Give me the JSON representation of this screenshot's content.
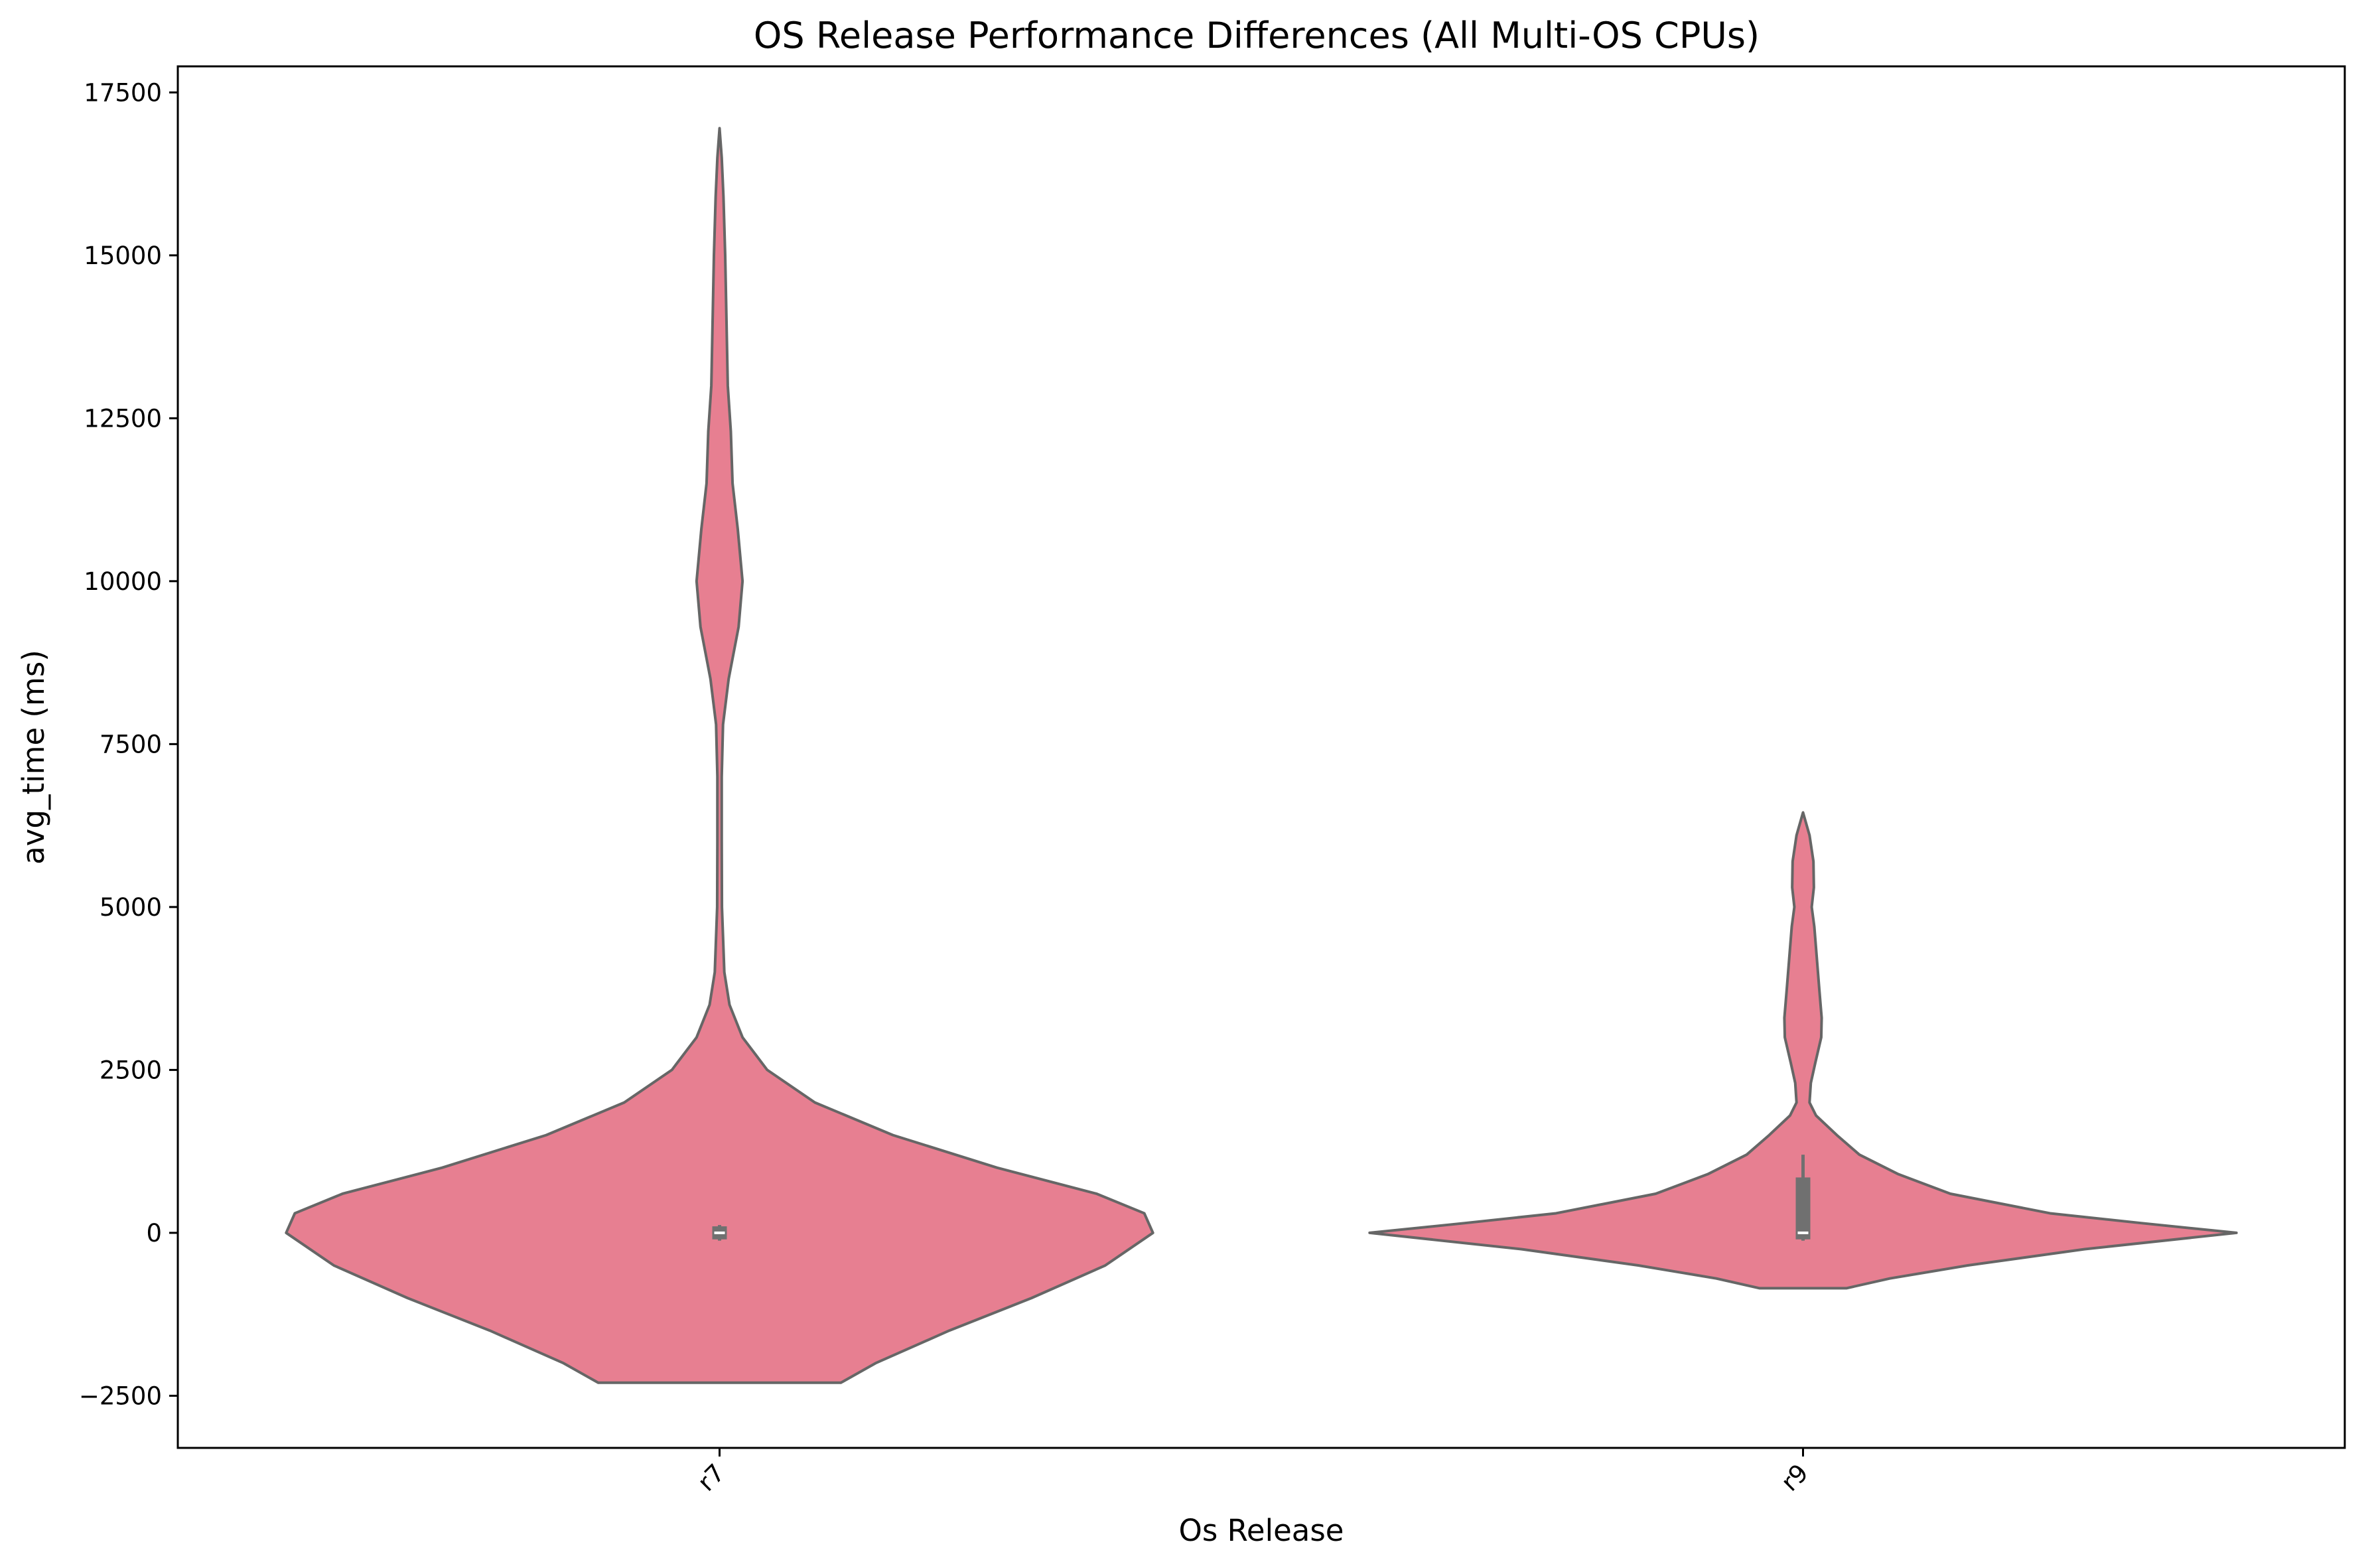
{
  "chart_data": {
    "type": "violin",
    "title": "OS Release Performance Differences (All Multi-OS CPUs)",
    "xlabel": "Os Release",
    "ylabel": "avg_time (ms)",
    "ylim": [
      -3300,
      17900
    ],
    "yticks": [
      -2500,
      0,
      2500,
      5000,
      7500,
      10000,
      12500,
      15000,
      17500
    ],
    "ytick_labels": [
      "−2500",
      "0",
      "2500",
      "5000",
      "7500",
      "10000",
      "12500",
      "15000",
      "17500"
    ],
    "categories": [
      "r7",
      "r9"
    ],
    "xtick_rotation": "45 degrees",
    "grid": false,
    "legend": "none",
    "fill_color": "#e77f91",
    "edge_color": "#666666",
    "violins": [
      {
        "category": "r7",
        "box": {
          "q1": -100,
          "median": 0,
          "q3": 100,
          "whisker_low": -120,
          "whisker_high": 120
        },
        "profile": [
          [
            -2300,
            0.28
          ],
          [
            -2000,
            0.36
          ],
          [
            -1500,
            0.53
          ],
          [
            -1000,
            0.72
          ],
          [
            -500,
            0.89
          ],
          [
            0,
            1.0
          ],
          [
            300,
            0.98
          ],
          [
            600,
            0.87
          ],
          [
            1000,
            0.64
          ],
          [
            1500,
            0.4
          ],
          [
            2000,
            0.22
          ],
          [
            2500,
            0.11
          ],
          [
            3000,
            0.053
          ],
          [
            3500,
            0.023
          ],
          [
            4000,
            0.011
          ],
          [
            5000,
            0.0055
          ],
          [
            6000,
            0.005
          ],
          [
            7000,
            0.005
          ],
          [
            7800,
            0.008
          ],
          [
            8500,
            0.021
          ],
          [
            9300,
            0.044
          ],
          [
            10000,
            0.053
          ],
          [
            10800,
            0.042
          ],
          [
            11500,
            0.03
          ],
          [
            12300,
            0.026
          ],
          [
            13000,
            0.019
          ],
          [
            14000,
            0.016
          ],
          [
            15000,
            0.013
          ],
          [
            15900,
            0.009
          ],
          [
            16500,
            0.005
          ],
          [
            16950,
            0.0
          ]
        ]
      },
      {
        "category": "r9",
        "box": {
          "q1": -100,
          "median": 0,
          "q3": 850,
          "whisker_low": -120,
          "whisker_high": 1200
        },
        "profile": [
          [
            -850,
            0.1
          ],
          [
            -700,
            0.2
          ],
          [
            -500,
            0.38
          ],
          [
            -250,
            0.65
          ],
          [
            0,
            1.0
          ],
          [
            150,
            0.78
          ],
          [
            300,
            0.57
          ],
          [
            600,
            0.34
          ],
          [
            900,
            0.22
          ],
          [
            1200,
            0.13
          ],
          [
            1500,
            0.078
          ],
          [
            1800,
            0.03
          ],
          [
            2000,
            0.015
          ],
          [
            2300,
            0.018
          ],
          [
            2600,
            0.028
          ],
          [
            3000,
            0.042
          ],
          [
            3300,
            0.043
          ],
          [
            3700,
            0.038
          ],
          [
            4200,
            0.032
          ],
          [
            4700,
            0.026
          ],
          [
            5000,
            0.02
          ],
          [
            5300,
            0.025
          ],
          [
            5700,
            0.024
          ],
          [
            6100,
            0.015
          ],
          [
            6450,
            0.0
          ]
        ]
      }
    ]
  }
}
